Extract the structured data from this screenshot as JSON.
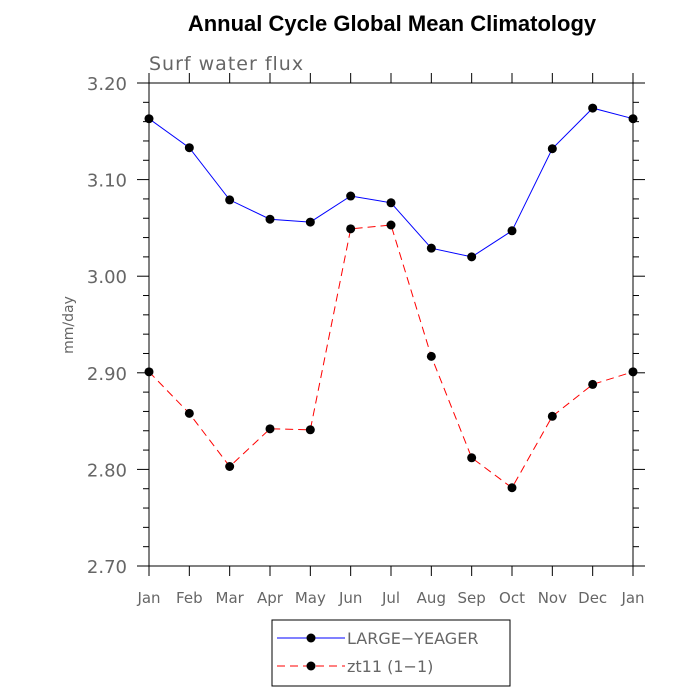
{
  "chart_data": {
    "type": "line",
    "title": "Annual Cycle Global Mean Climatology",
    "subtitle": "Surf water flux",
    "xlabel": "",
    "ylabel": "mm/day",
    "categories": [
      "Jan",
      "Feb",
      "Mar",
      "Apr",
      "May",
      "Jun",
      "Jul",
      "Aug",
      "Sep",
      "Oct",
      "Nov",
      "Dec",
      "Jan"
    ],
    "ylim": [
      2.7,
      3.2
    ],
    "yticks": [
      "2.70",
      "2.80",
      "2.90",
      "3.00",
      "3.10",
      "3.20"
    ],
    "grid": false,
    "legend_position": "bottom",
    "series": [
      {
        "name": "LARGE−YEAGER",
        "color": "#0000ff",
        "dash": "solid",
        "values": [
          3.163,
          3.133,
          3.079,
          3.059,
          3.056,
          3.083,
          3.076,
          3.029,
          3.02,
          3.047,
          3.132,
          3.174,
          3.163
        ]
      },
      {
        "name": "zt11 (1−1)",
        "color": "#ff0000",
        "dash": "dashed",
        "values": [
          2.901,
          2.858,
          2.803,
          2.842,
          2.841,
          3.049,
          3.053,
          2.917,
          2.812,
          2.781,
          2.855,
          2.888,
          2.901
        ]
      }
    ]
  }
}
